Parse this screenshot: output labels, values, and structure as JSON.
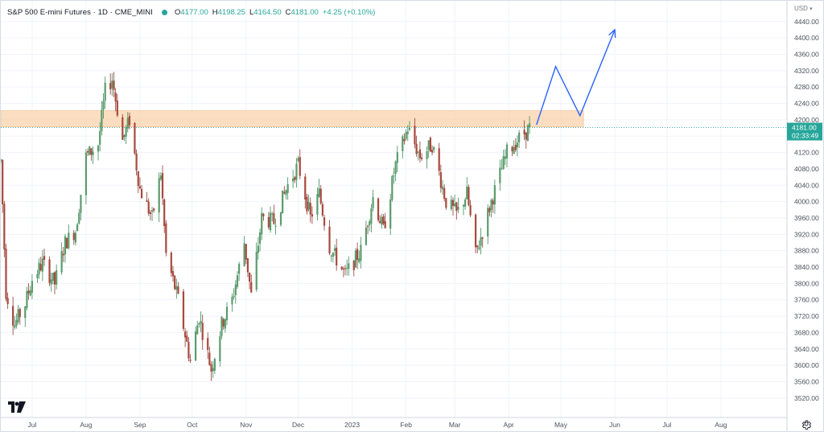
{
  "legend": {
    "symbol": "S&P 500 E-mini Futures · 1D · CME_MINI",
    "open_label": "O",
    "open": "4177.00",
    "high_label": "H",
    "high": "4198.25",
    "low_label": "L",
    "low": "4164.50",
    "close_label": "C",
    "close": "4181.00",
    "change": "+4.25 (+0.10%)"
  },
  "currency": "USD",
  "price_tag": {
    "price": "4181.00",
    "countdown": "02:33:49"
  },
  "colors": {
    "up": "#26a69a",
    "down": "#ef5350",
    "body_up": "#5b9b6d",
    "body_down": "#a8493d",
    "zone": "#fad3ac",
    "projection": "#2962ff"
  },
  "chart_data": {
    "type": "candlestick",
    "title": "S&P 500 E-mini Futures · 1D · CME_MINI",
    "y_axis": {
      "min": 3490,
      "max": 4470,
      "ticks": [
        3520,
        3560,
        3600,
        3640,
        3680,
        3720,
        3760,
        3800,
        3840,
        3880,
        3920,
        3960,
        4000,
        4040,
        4080,
        4120,
        4160,
        4200,
        4240,
        4280,
        4320,
        4360,
        4400,
        4440
      ]
    },
    "x_axis": {
      "start": "2022-06-13",
      "end": "2023-09-08",
      "ticks": [
        {
          "label": "Jul",
          "date": "2022-07-01"
        },
        {
          "label": "Aug",
          "date": "2022-08-01"
        },
        {
          "label": "Sep",
          "date": "2022-09-01"
        },
        {
          "label": "Oct",
          "date": "2022-10-01"
        },
        {
          "label": "Nov",
          "date": "2022-11-01"
        },
        {
          "label": "Dec",
          "date": "2022-12-01"
        },
        {
          "label": "2023",
          "date": "2023-01-01"
        },
        {
          "label": "Feb",
          "date": "2023-02-01"
        },
        {
          "label": "Mar",
          "date": "2023-03-01"
        },
        {
          "label": "Apr",
          "date": "2023-04-01"
        },
        {
          "label": "May",
          "date": "2023-05-01"
        },
        {
          "label": "Jun",
          "date": "2023-06-01"
        },
        {
          "label": "Jul",
          "date": "2023-07-01"
        },
        {
          "label": "Aug",
          "date": "2023-08-01"
        }
      ]
    },
    "price_path": [
      [
        "2022-06-13",
        4100
      ],
      [
        "2022-06-16",
        3780
      ],
      [
        "2022-06-21",
        3700
      ],
      [
        "2022-06-27",
        3750
      ],
      [
        "2022-07-01",
        3810
      ],
      [
        "2022-07-07",
        3850
      ],
      [
        "2022-07-14",
        3800
      ],
      [
        "2022-07-20",
        3900
      ],
      [
        "2022-07-26",
        3930
      ],
      [
        "2022-08-01",
        4110
      ],
      [
        "2022-08-08",
        4140
      ],
      [
        "2022-08-12",
        4270
      ],
      [
        "2022-08-16",
        4300
      ],
      [
        "2022-08-22",
        4150
      ],
      [
        "2022-08-26",
        4200
      ],
      [
        "2022-09-01",
        4030
      ],
      [
        "2022-09-08",
        3960
      ],
      [
        "2022-09-13",
        4070
      ],
      [
        "2022-09-16",
        3870
      ],
      [
        "2022-09-23",
        3760
      ],
      [
        "2022-09-30",
        3610
      ],
      [
        "2022-10-05",
        3720
      ],
      [
        "2022-10-12",
        3590
      ],
      [
        "2022-10-18",
        3700
      ],
      [
        "2022-10-24",
        3760
      ],
      [
        "2022-10-31",
        3900
      ],
      [
        "2022-11-04",
        3770
      ],
      [
        "2022-11-10",
        3960
      ],
      [
        "2022-11-17",
        3950
      ],
      [
        "2022-11-25",
        4040
      ],
      [
        "2022-12-01",
        4090
      ],
      [
        "2022-12-08",
        3960
      ],
      [
        "2022-12-13",
        4020
      ],
      [
        "2022-12-19",
        3890
      ],
      [
        "2022-12-28",
        3820
      ],
      [
        "2023-01-06",
        3880
      ],
      [
        "2023-01-13",
        4010
      ],
      [
        "2023-01-19",
        3930
      ],
      [
        "2023-01-26",
        4090
      ],
      [
        "2023-02-02",
        4180
      ],
      [
        "2023-02-09",
        4110
      ],
      [
        "2023-02-16",
        4140
      ],
      [
        "2023-02-24",
        4000
      ],
      [
        "2023-03-02",
        3970
      ],
      [
        "2023-03-08",
        4020
      ],
      [
        "2023-03-13",
        3870
      ],
      [
        "2023-03-22",
        4000
      ],
      [
        "2023-03-31",
        4120
      ],
      [
        "2023-04-06",
        4150
      ],
      [
        "2023-04-13",
        4180
      ]
    ],
    "resistance_zone": {
      "low": 4183,
      "high": 4222,
      "start": "2022-06-13",
      "end": "2023-05-14"
    },
    "projection": [
      [
        "2023-04-17",
        4188
      ],
      [
        "2023-04-28",
        4330
      ],
      [
        "2023-05-12",
        4210
      ],
      [
        "2023-06-01",
        4420
      ]
    ]
  }
}
